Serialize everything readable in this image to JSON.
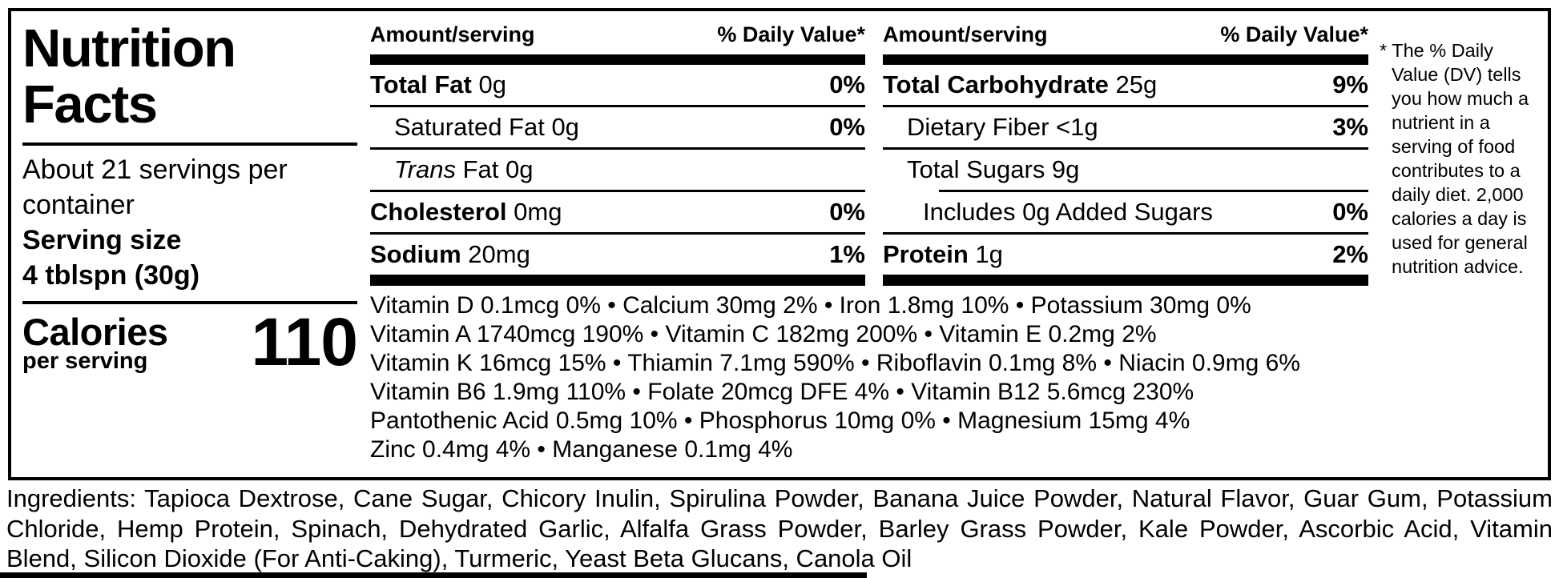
{
  "colors": {
    "text": "#000000",
    "background": "#ffffff"
  },
  "title": {
    "line1": "Nutrition",
    "line2": "Facts"
  },
  "serving": {
    "per_container": "About 21 servings per container",
    "size_label": "Serving size",
    "size_value": "4 tblspn (30g)"
  },
  "calories": {
    "label": "Calories",
    "sublabel": "per serving",
    "value": "110"
  },
  "table_header": {
    "amount": "Amount/serving",
    "dv": "% Daily Value*"
  },
  "nutrients": {
    "left": [
      {
        "bold": "Total Fat",
        "italic": "",
        "regular": " 0g",
        "dv": "0%"
      },
      {
        "bold": "",
        "italic": "",
        "regular": "Saturated Fat 0g",
        "dv": "0%"
      },
      {
        "bold": "",
        "italic": "Trans",
        "regular": " Fat 0g",
        "dv": ""
      },
      {
        "bold": "Cholesterol",
        "italic": "",
        "regular": " 0mg",
        "dv": "0%"
      },
      {
        "bold": "Sodium",
        "italic": "",
        "regular": " 20mg",
        "dv": "1%"
      }
    ],
    "right": [
      {
        "bold": "Total Carbohydrate",
        "italic": "",
        "regular": " 25g",
        "dv": "9%"
      },
      {
        "bold": "",
        "italic": "",
        "regular": "Dietary Fiber <1g",
        "dv": "3%"
      },
      {
        "bold": "",
        "italic": "",
        "regular": "Total Sugars 9g",
        "dv": ""
      },
      {
        "bold": "",
        "italic": "",
        "regular": "Includes 0g Added Sugars",
        "dv": "0%"
      },
      {
        "bold": "Protein",
        "italic": "",
        "regular": " 1g",
        "dv": "2%"
      }
    ]
  },
  "micronutrients": {
    "lines": [
      "Vitamin D 0.1mcg 0% • Calcium 30mg 2% • Iron 1.8mg 10% • Potassium 30mg 0%",
      "Vitamin A 1740mcg 190% • Vitamin C 182mg 200% • Vitamin E 0.2mg 2%",
      "Vitamin K 16mcg 15% • Thiamin 7.1mg 590% • Riboflavin 0.1mg 8% • Niacin 0.9mg 6%",
      "Vitamin B6 1.9mg 110% • Folate 20mcg DFE 4% • Vitamin B12 5.6mcg 230%",
      "Pantothenic Acid 0.5mg 10% • Phosphorus 10mg 0% • Magnesium 15mg 4%",
      "Zinc 0.4mg 4% • Manganese 0.1mg 4%"
    ]
  },
  "footnote": "* The % Daily Value (DV) tells you how much a nutrient in a serving of food contributes to a daily diet. 2,000 calories a day is used for general nutrition advice.",
  "ingredients": "Ingredients: Tapioca Dextrose, Cane Sugar, Chicory Inulin, Spirulina Powder, Banana Juice Powder, Natural Flavor, Guar Gum, Potassium Chloride, Hemp Protein, Spinach, Dehydrated Garlic, Alfalfa Grass Powder, Barley Grass Powder, Kale Powder, Ascorbic Acid, Vitamin Blend, Silicon Dioxide (For Anti-Caking), Turmeric, Yeast Beta Glucans, Canola Oil"
}
